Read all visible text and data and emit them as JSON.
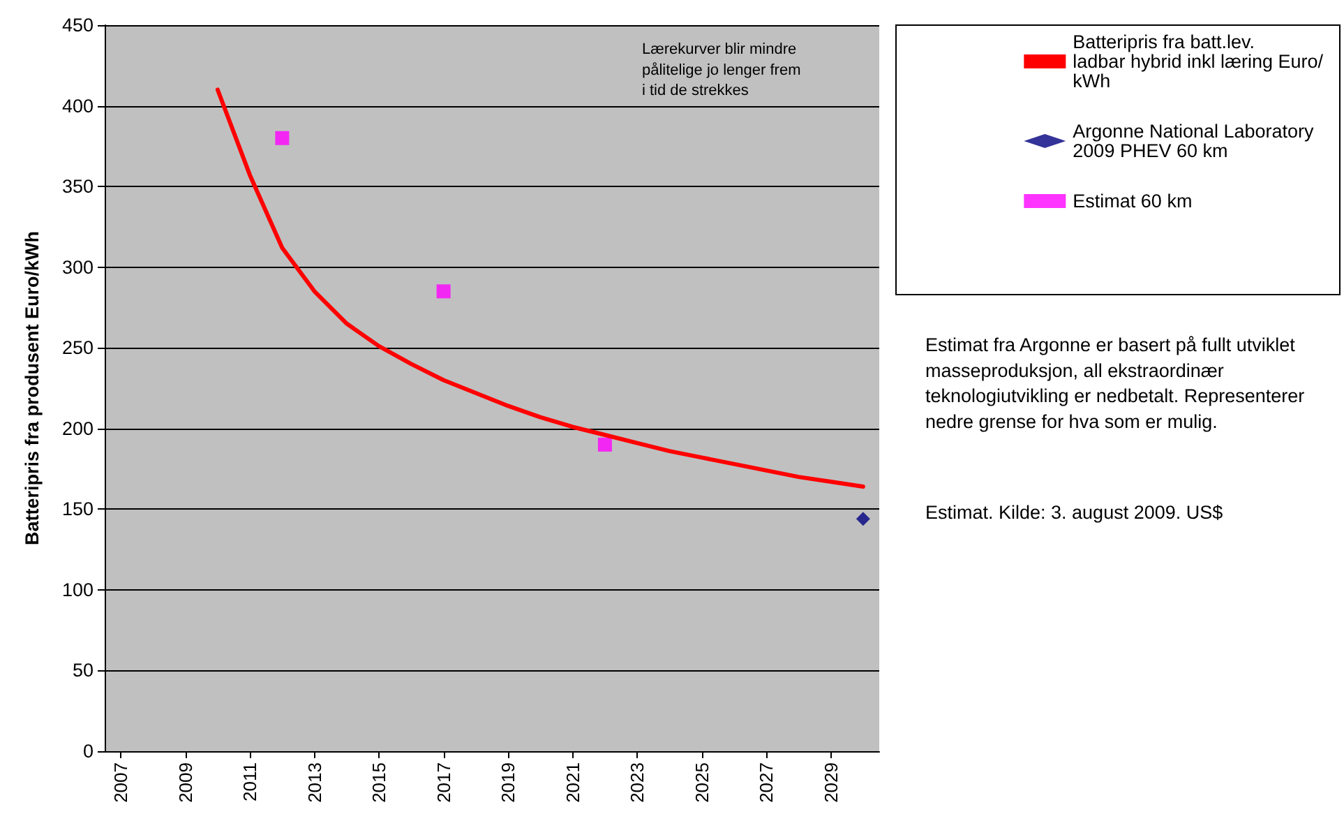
{
  "chart_data": {
    "type": "line",
    "ylabel": "Batteripris fra produsent Euro/kWh",
    "xlim": [
      2006.5,
      2030.5
    ],
    "xticks": [
      2007,
      2009,
      2011,
      2013,
      2015,
      2017,
      2019,
      2021,
      2023,
      2025,
      2027,
      2029
    ],
    "ylim": [
      0,
      450
    ],
    "yticks": [
      0,
      50,
      100,
      150,
      200,
      250,
      300,
      350,
      400,
      450
    ],
    "grid": "y",
    "legend": "right",
    "series": [
      {
        "name": "Batteripris fra batt.lev. ladbar hybrid inkl læring Euro/kWh",
        "color": "#ff0000",
        "marker": "none",
        "x": [
          2010,
          2011,
          2012,
          2013,
          2014,
          2015,
          2016,
          2017,
          2018,
          2019,
          2020,
          2021,
          2022,
          2023,
          2024,
          2025,
          2026,
          2027,
          2028,
          2029,
          2030
        ],
        "values": [
          410,
          357,
          312,
          285,
          265,
          251,
          240,
          230,
          222,
          214,
          207,
          201,
          196,
          191,
          186,
          182,
          178,
          174,
          170,
          167,
          164
        ]
      },
      {
        "name": "Argonne National Laboratory 2009 PHEV 60 km",
        "type": "scatter",
        "color": "#000080",
        "marker": "diamond",
        "x": [
          2030
        ],
        "values": [
          144
        ]
      },
      {
        "name": "Estimat 60 km",
        "type": "scatter",
        "color": "#ff00ff",
        "marker": "square",
        "x": [
          2012,
          2017,
          2022
        ],
        "values": [
          380,
          285,
          190
        ]
      }
    ],
    "annotations": [
      "Lærekurver blir mindre pålitelige jo lenger frem i tid de strekkes",
      "Estimat fra Argonne er basert på fullt utviklet masseproduksjon, all ekstraordinær teknologiutvikling er nedbetalt. Representerer nedre grense for hva som er mulig.",
      "Estimat. Kilde: 3. august 2009. US$"
    ]
  }
}
